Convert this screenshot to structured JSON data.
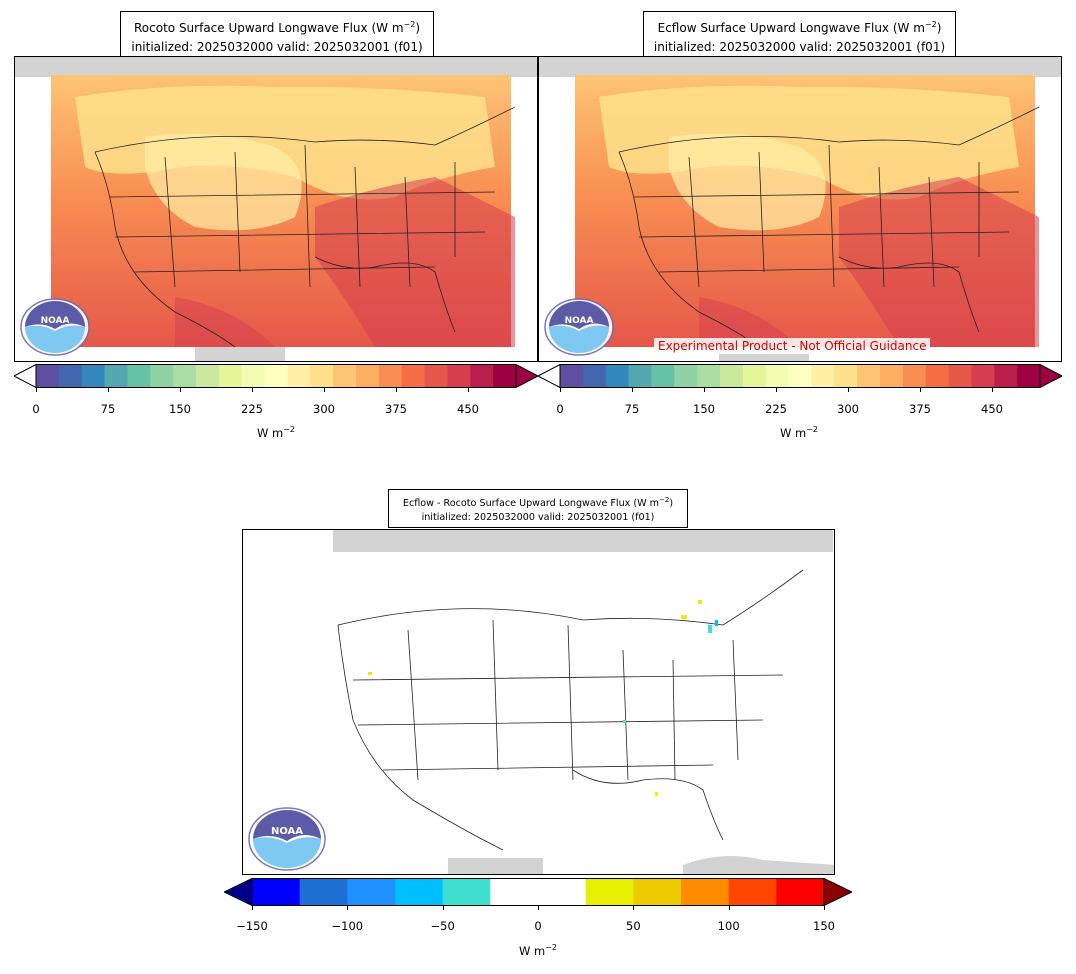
{
  "panels": {
    "rocoto": {
      "title_line1": "Rocoto Surface Upward Longwave Flux (W m",
      "title_sup": "−2",
      "title_close": ")",
      "title_line2": "initialized: 2025032000 valid: 2025032001 (f01)",
      "cbar_unit": "W m",
      "cbar_unit_sup": "−2"
    },
    "ecflow": {
      "title_line1": "Ecflow Surface Upward Longwave Flux (W m",
      "title_sup": "−2",
      "title_close": ")",
      "title_line2": "initialized: 2025032000 valid: 2025032001 (f01)",
      "disclaimer": "Experimental Product - Not Official Guidance",
      "cbar_unit": "W m",
      "cbar_unit_sup": "−2"
    },
    "difference": {
      "title_line1": "Ecflow - Rocoto Surface Upward Longwave Flux (W m",
      "title_sup": "−2",
      "title_close": ")",
      "title_line2": "initialized: 2025032000 valid: 2025032001 (f01)",
      "cbar_unit": "W m",
      "cbar_unit_sup": "−2"
    }
  },
  "logo": {
    "text": "NOAA",
    "icon": "noaa-logo-icon"
  },
  "chart_data": [
    {
      "type": "heatmap",
      "field": "Surface Upward Longwave Flux",
      "colorbar": {
        "ticks": [
          "0",
          "75",
          "150",
          "225",
          "300",
          "375",
          "450"
        ],
        "tick_values": [
          0,
          75,
          150,
          225,
          300,
          375,
          450
        ],
        "range": [
          0,
          500
        ],
        "extend": "both",
        "colors": [
          "#5e4fa2",
          "#4367ae",
          "#3288bd",
          "#52a7b0",
          "#66c2a5",
          "#8fd3a4",
          "#abdda4",
          "#cbe99d",
          "#e6f598",
          "#f4fbb2",
          "#ffffbf",
          "#fff0a6",
          "#fee08b",
          "#fdc474",
          "#fdae61",
          "#f98e52",
          "#f46d43",
          "#e55749",
          "#d53e4f",
          "#b91f4b",
          "#9e0142"
        ]
      }
    },
    {
      "type": "heatmap",
      "field": "Surface Upward Longwave Flux",
      "colorbar": {
        "ticks": [
          "0",
          "75",
          "150",
          "225",
          "300",
          "375",
          "450"
        ],
        "tick_values": [
          0,
          75,
          150,
          225,
          300,
          375,
          450
        ],
        "range": [
          0,
          500
        ],
        "extend": "both",
        "colors": [
          "#5e4fa2",
          "#4367ae",
          "#3288bd",
          "#52a7b0",
          "#66c2a5",
          "#8fd3a4",
          "#abdda4",
          "#cbe99d",
          "#e6f598",
          "#f4fbb2",
          "#ffffbf",
          "#fff0a6",
          "#fee08b",
          "#fdc474",
          "#fdae61",
          "#f98e52",
          "#f46d43",
          "#e55749",
          "#d53e4f",
          "#b91f4b",
          "#9e0142"
        ]
      }
    },
    {
      "type": "heatmap",
      "field": "Difference",
      "colorbar": {
        "ticks": [
          "−150",
          "−100",
          "−50",
          "0",
          "50",
          "100",
          "150"
        ],
        "tick_values": [
          -150,
          -100,
          -50,
          0,
          50,
          100,
          150
        ],
        "range": [
          -150,
          150
        ],
        "extend": "both",
        "colors": [
          "#0000ff",
          "#1e6fd2",
          "#1e90ff",
          "#00bfff",
          "#40e0d0",
          "#ffffff",
          "#ffffff",
          "#e6f000",
          "#eecb00",
          "#ff8c00",
          "#ff4500",
          "#ff0000"
        ],
        "under_color": "#00008b",
        "over_color": "#8b0000"
      }
    }
  ]
}
